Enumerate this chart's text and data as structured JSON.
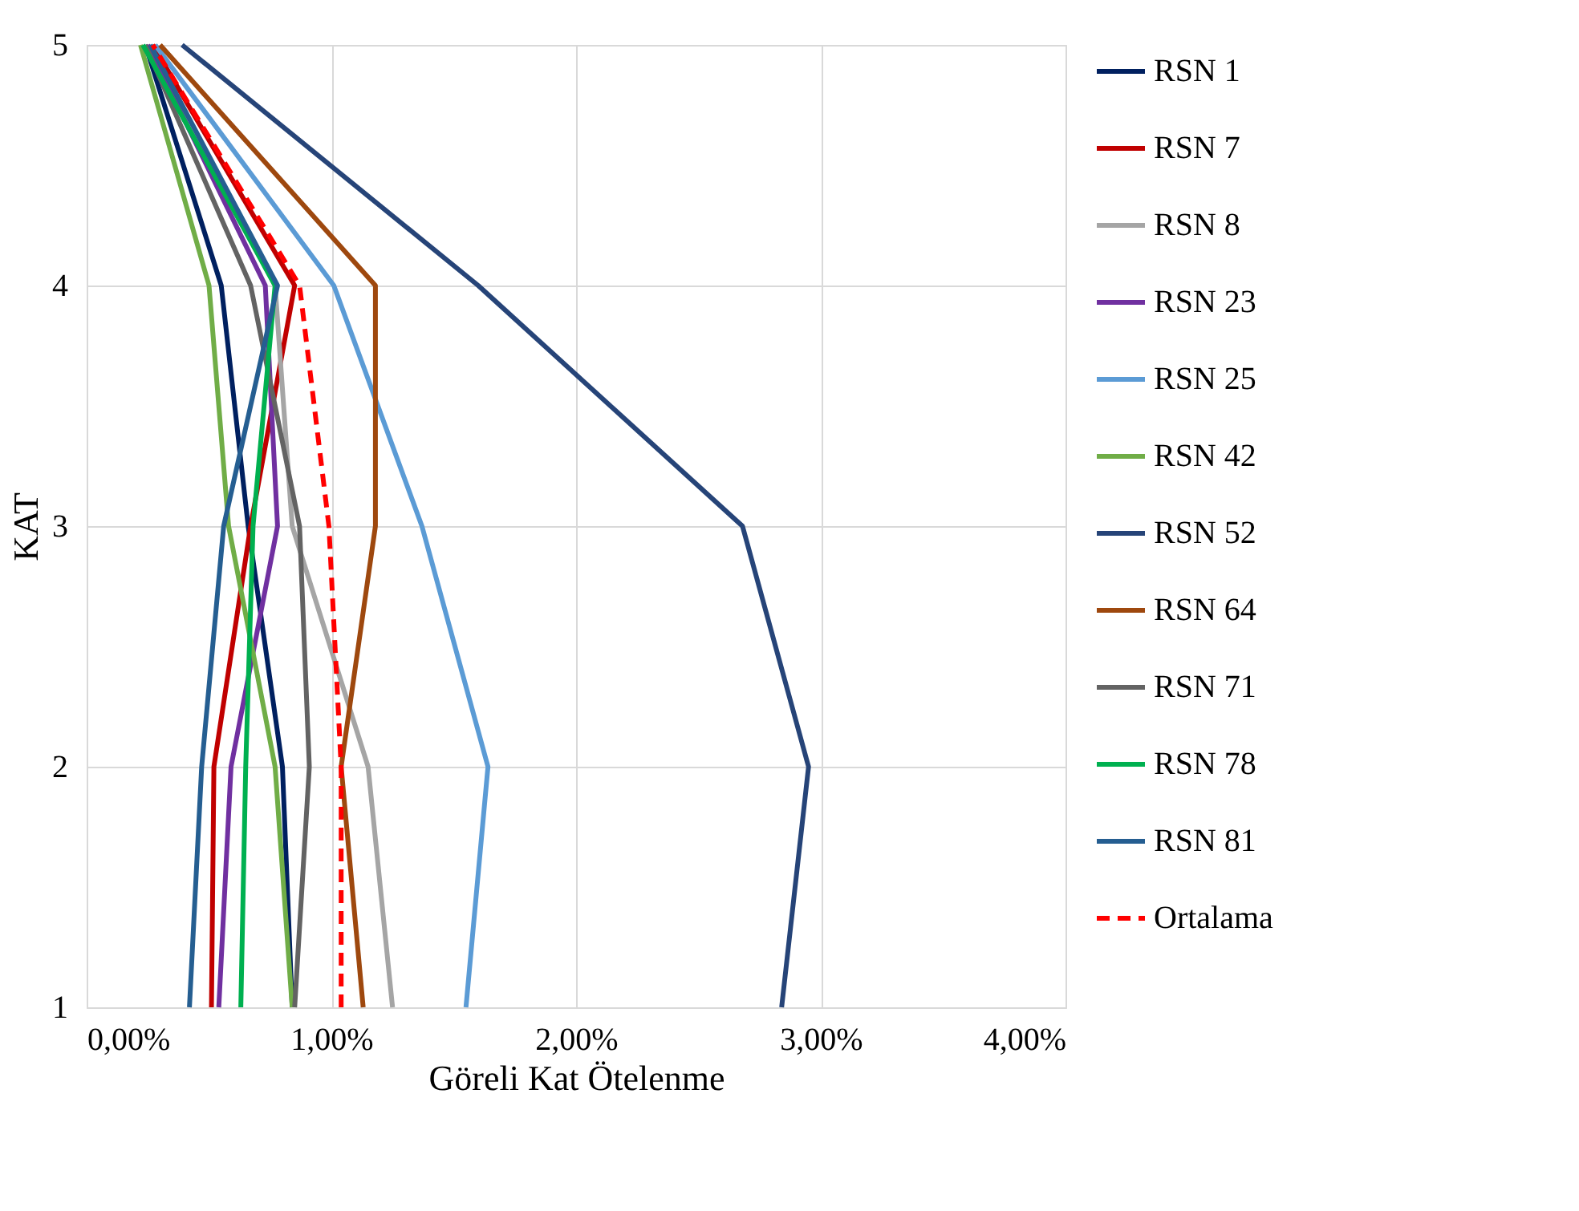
{
  "chart_data": {
    "type": "line",
    "xlabel": "Göreli Kat Ötelenme",
    "ylabel": "KAT",
    "xlim": [
      0,
      4
    ],
    "xticks": [
      {
        "value": 0,
        "label": "0,00%"
      },
      {
        "value": 1,
        "label": "1,00%"
      },
      {
        "value": 2,
        "label": "2,00%"
      },
      {
        "value": 3,
        "label": "3,00%"
      },
      {
        "value": 4,
        "label": "4,00%"
      }
    ],
    "ylim": [
      1,
      5
    ],
    "yticks": [
      1,
      2,
      3,
      4,
      5
    ],
    "grid": true,
    "legend": "right",
    "marker": "none",
    "series": [
      {
        "name": "RSN 1",
        "color": "#002060",
        "x": [
          0.84,
          0.8,
          0.66,
          0.55,
          0.24
        ],
        "values": [
          1,
          2,
          3,
          4,
          5
        ]
      },
      {
        "name": "RSN 7",
        "color": "#c00000",
        "x": [
          0.51,
          0.52,
          0.67,
          0.85,
          0.27
        ],
        "values": [
          1,
          2,
          3,
          4,
          5
        ]
      },
      {
        "name": "RSN 8",
        "color": "#a5a5a5",
        "x": [
          1.25,
          1.15,
          0.84,
          0.77,
          0.25
        ],
        "values": [
          1,
          2,
          3,
          4,
          5
        ]
      },
      {
        "name": "RSN 23",
        "color": "#7030a0",
        "x": [
          0.54,
          0.59,
          0.78,
          0.73,
          0.25
        ],
        "values": [
          1,
          2,
          3,
          4,
          5
        ]
      },
      {
        "name": "RSN 25",
        "color": "#5b9bd5",
        "x": [
          1.55,
          1.64,
          1.37,
          1.01,
          0.28
        ],
        "values": [
          1,
          2,
          3,
          4,
          5
        ]
      },
      {
        "name": "RSN 42",
        "color": "#70ad47",
        "x": [
          0.84,
          0.77,
          0.58,
          0.5,
          0.22
        ],
        "values": [
          1,
          2,
          3,
          4,
          5
        ]
      },
      {
        "name": "RSN 52",
        "color": "#264478",
        "x": [
          2.84,
          2.95,
          2.68,
          1.6,
          0.39
        ],
        "values": [
          1,
          2,
          3,
          4,
          5
        ]
      },
      {
        "name": "RSN 64",
        "color": "#9e480e",
        "x": [
          1.13,
          1.04,
          1.18,
          1.18,
          0.3
        ],
        "values": [
          1,
          2,
          3,
          4,
          5
        ]
      },
      {
        "name": "RSN 71",
        "color": "#636363",
        "x": [
          0.85,
          0.91,
          0.87,
          0.67,
          0.24
        ],
        "values": [
          1,
          2,
          3,
          4,
          5
        ]
      },
      {
        "name": "RSN 78",
        "color": "#00b050",
        "x": [
          0.63,
          0.65,
          0.68,
          0.77,
          0.23
        ],
        "values": [
          1,
          2,
          3,
          4,
          5
        ]
      },
      {
        "name": "RSN 81",
        "color": "#255e91",
        "x": [
          0.42,
          0.47,
          0.56,
          0.78,
          0.26
        ],
        "values": [
          1,
          2,
          3,
          4,
          5
        ]
      },
      {
        "name": "Ortalama",
        "color": "#ff0000",
        "line_style": "dashed",
        "x": [
          1.04,
          1.04,
          0.99,
          0.87,
          0.27
        ],
        "values": [
          1,
          2,
          3,
          4,
          5
        ]
      }
    ]
  }
}
